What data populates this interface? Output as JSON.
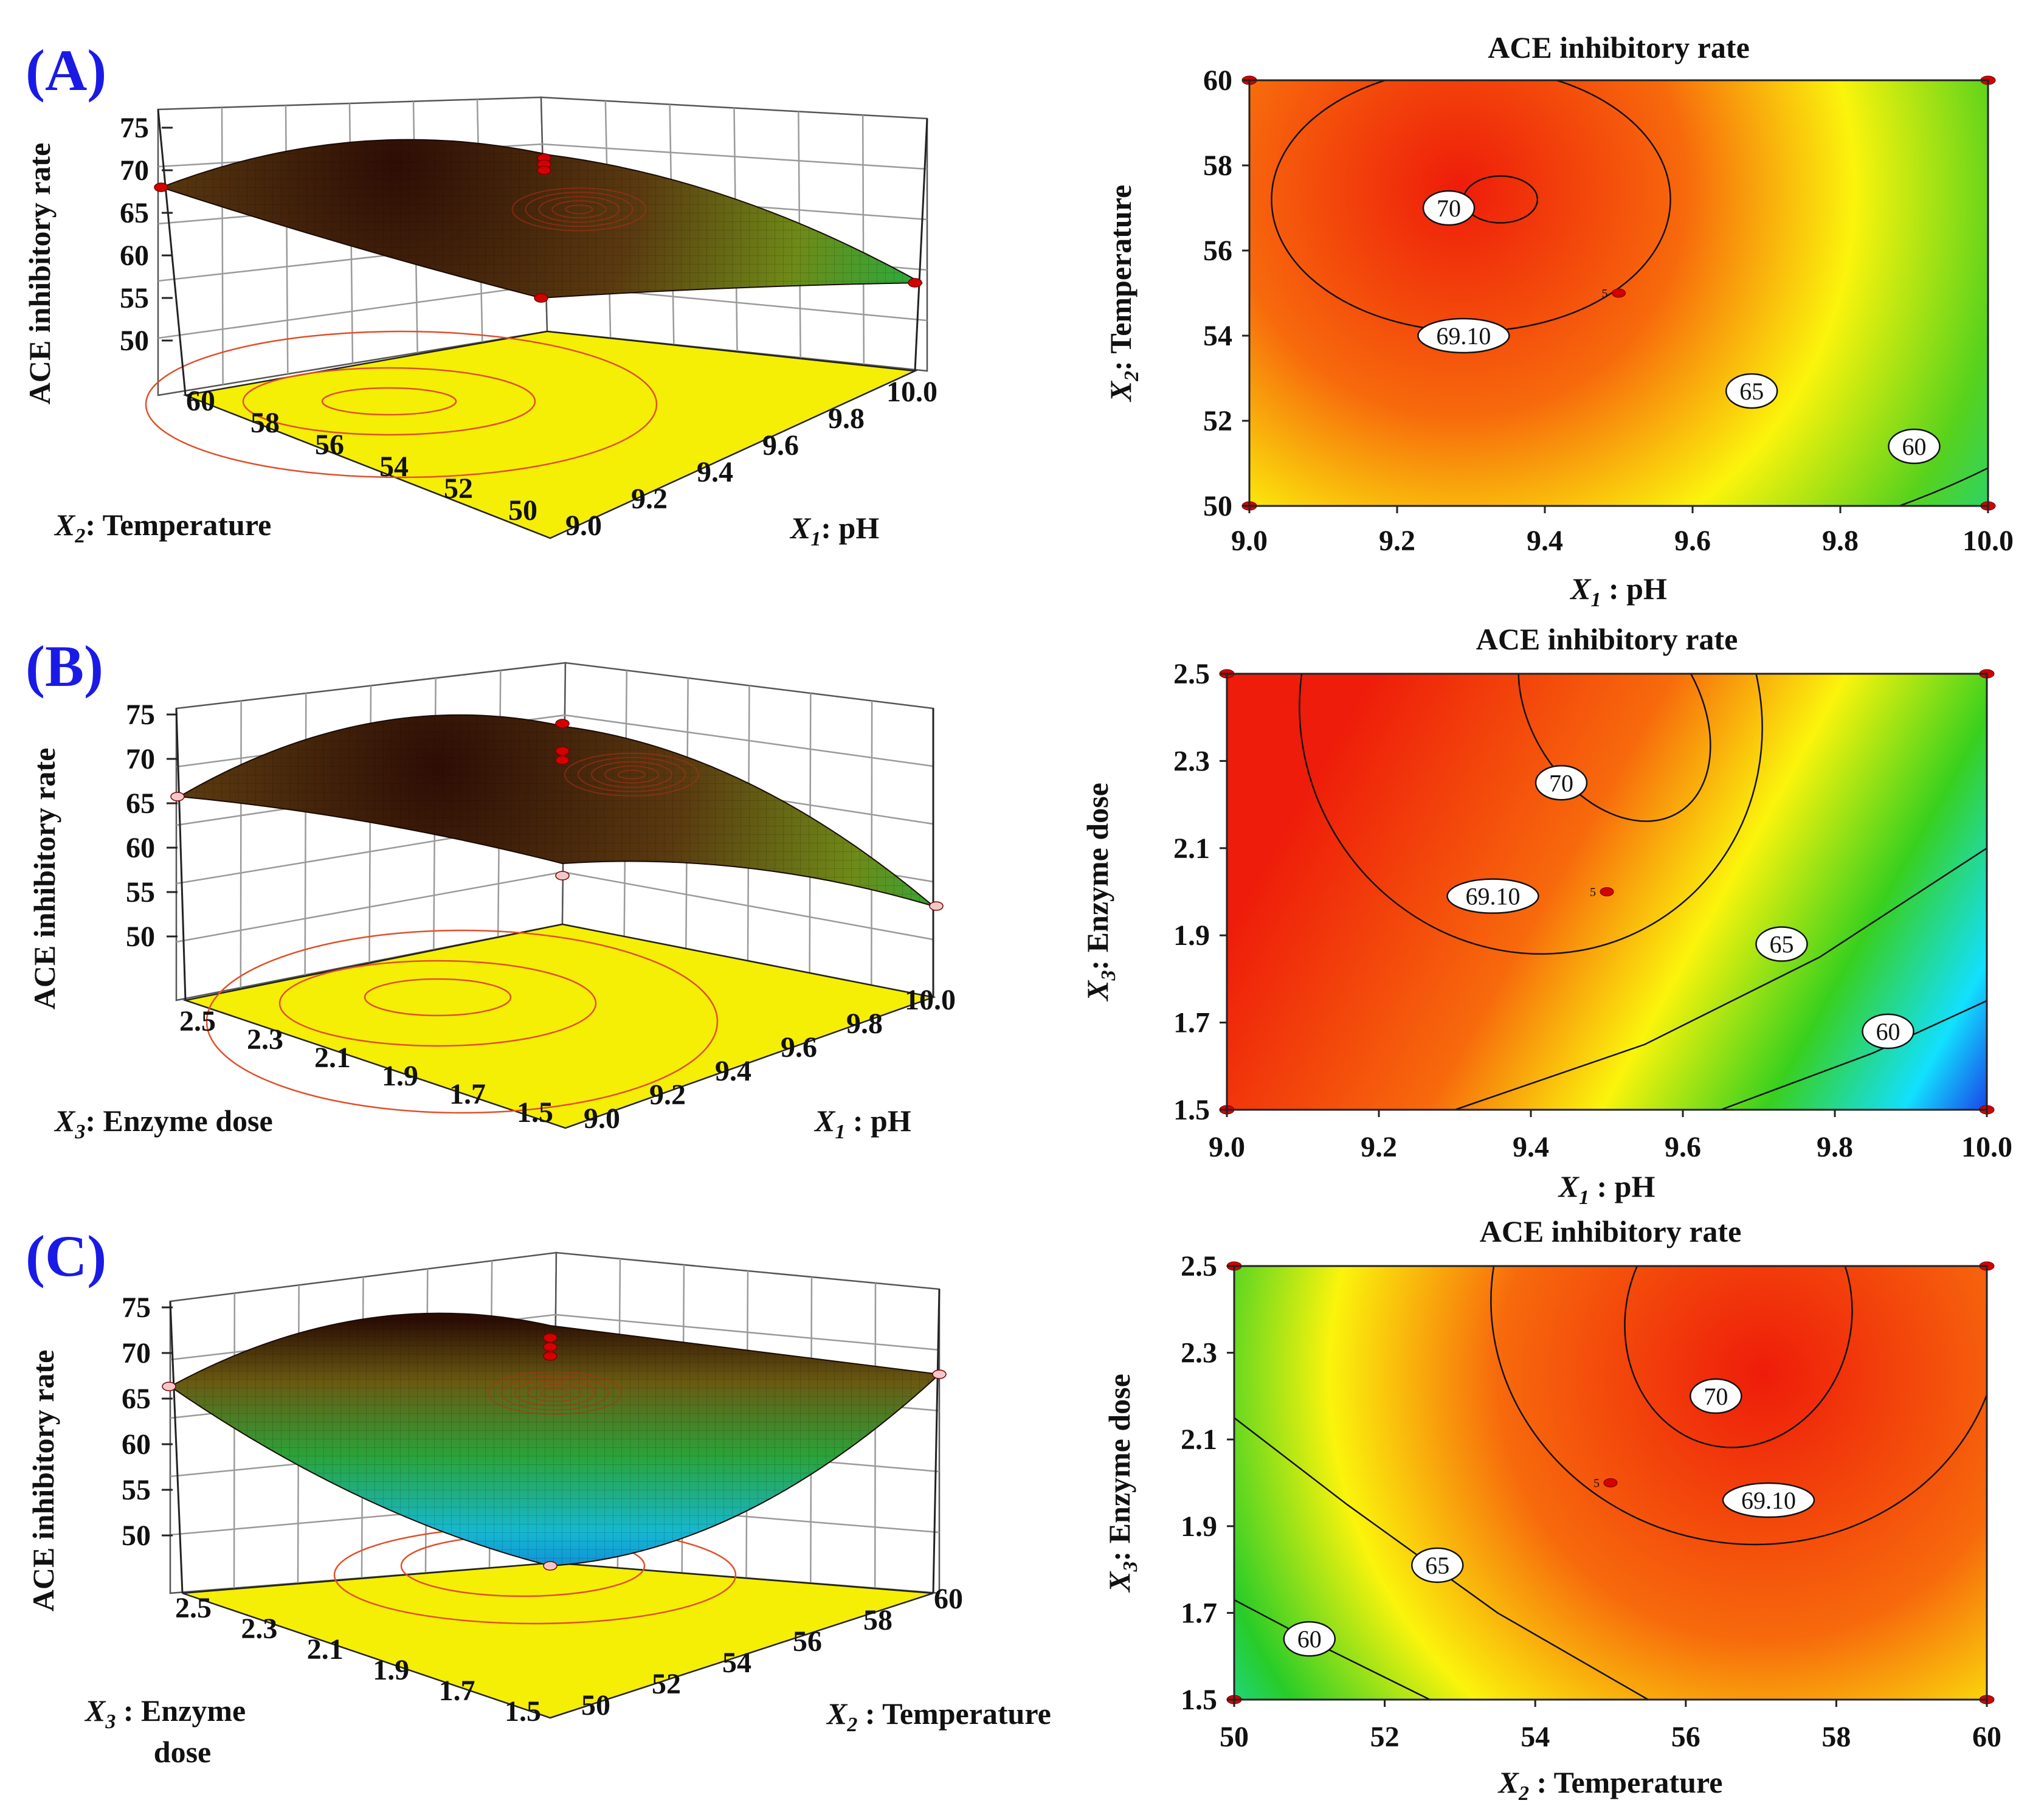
{
  "chart_data": [
    {
      "panel": "(A)",
      "type": "surface3d",
      "zlabel": "ACE inhibitory rate",
      "zticks": [
        "50",
        "55",
        "60",
        "65",
        "70",
        "75"
      ],
      "xlabel": {
        "var": "X",
        "sub": "2",
        "rest": ": Temperature"
      },
      "xticks": [
        "60",
        "58",
        "56",
        "54",
        "52",
        "50"
      ],
      "ylabel": {
        "var": "X",
        "sub": "1",
        "rest": ": pH"
      },
      "yticks": [
        "9.0",
        "9.2",
        "9.4",
        "9.6",
        "9.8",
        "10.0"
      ],
      "colors": {
        "floor": "#f5ee05",
        "top": "#3a1206",
        "mid": "#7a8a12",
        "low": "#1fae3c",
        "contour": "#e04f2a"
      }
    },
    {
      "panel": "(A)",
      "type": "contour",
      "title": "ACE inhibitory rate",
      "x": {
        "ticks": [
          "9.0",
          "9.2",
          "9.4",
          "9.6",
          "9.8",
          "10.0"
        ],
        "range": [
          9.0,
          10.0
        ],
        "label": {
          "var": "X",
          "sub": "1",
          "rest": " : pH"
        }
      },
      "y": {
        "ticks": [
          "50",
          "52",
          "54",
          "56",
          "58",
          "60"
        ],
        "range": [
          50,
          60
        ],
        "label": {
          "var": "X",
          "sub": "2",
          "rest": ": Temperature"
        }
      },
      "peak": {
        "x": 9.32,
        "y": 57.2,
        "value": 70.3
      },
      "levels": [
        "70",
        "69.10",
        "65",
        "60"
      ],
      "design_point_label": "5"
    },
    {
      "panel": "(B)",
      "type": "surface3d",
      "zlabel": "ACE inhibitory rate",
      "zticks": [
        "50",
        "55",
        "60",
        "65",
        "70",
        "75"
      ],
      "xlabel": {
        "var": "X",
        "sub": "3",
        "rest": ": Enzyme dose"
      },
      "xticks": [
        "2.5",
        "2.3",
        "2.1",
        "1.9",
        "1.7",
        "1.5"
      ],
      "ylabel": {
        "var": "X",
        "sub": "1",
        "rest": " : pH"
      },
      "yticks": [
        "9.0",
        "9.2",
        "9.4",
        "9.6",
        "9.8",
        "10.0"
      ],
      "colors": {
        "floor": "#f5ee05",
        "top": "#3a1206",
        "mid": "#7a8a12",
        "low": "#1fae3c",
        "contour": "#e04f2a"
      }
    },
    {
      "panel": "(B)",
      "type": "contour",
      "title": "ACE inhibitory rate",
      "x": {
        "ticks": [
          "9.0",
          "9.2",
          "9.4",
          "9.6",
          "9.8",
          "10.0"
        ],
        "range": [
          9.0,
          10.0
        ],
        "label": {
          "var": "X",
          "sub": "1",
          "rest": " : pH"
        }
      },
      "y": {
        "ticks": [
          "1.5",
          "1.7",
          "1.9",
          "2.1",
          "2.3",
          "2.5"
        ],
        "range": [
          1.5,
          2.5
        ],
        "label": {
          "var": "X",
          "sub": "3",
          "rest": ": Enzyme dose"
        }
      },
      "peak": {
        "x": 9.45,
        "y": 2.38,
        "value": 70.3
      },
      "levels": [
        "70",
        "69.10",
        "65",
        "60"
      ],
      "design_point_label": "5"
    },
    {
      "panel": "(C)",
      "type": "surface3d",
      "zlabel": "ACE inhibitory rate",
      "zticks": [
        "50",
        "55",
        "60",
        "65",
        "70",
        "75"
      ],
      "xlabel": {
        "var": "X",
        "sub": "3",
        "rest": " : Enzyme",
        "line2": "dose"
      },
      "xticks": [
        "2.5",
        "2.3",
        "2.1",
        "1.9",
        "1.7",
        "1.5"
      ],
      "ylabel": {
        "var": "X",
        "sub": "2",
        "rest": " : Temperature"
      },
      "yticks": [
        "50",
        "52",
        "54",
        "56",
        "58",
        "60"
      ],
      "colors": {
        "floor": "#f5ee05",
        "top": "#3a1206",
        "mid": "#7a8a12",
        "low": "#18b8d8",
        "contour": "#e04f2a"
      }
    },
    {
      "panel": "(C)",
      "type": "contour",
      "title": "ACE inhibitory rate",
      "x": {
        "ticks": [
          "50",
          "52",
          "54",
          "56",
          "58",
          "60"
        ],
        "range": [
          50,
          60
        ],
        "label": {
          "var": "X",
          "sub": "2",
          "rest": " : Temperature"
        }
      },
      "y": {
        "ticks": [
          "1.5",
          "1.7",
          "1.9",
          "2.1",
          "2.3",
          "2.5"
        ],
        "range": [
          1.5,
          2.5
        ],
        "label": {
          "var": "X",
          "sub": "3",
          "rest": ": Enzyme dose"
        }
      },
      "peak": {
        "x": 56.6,
        "y": 2.32,
        "value": 70.3
      },
      "levels": [
        "70",
        "69.10",
        "65",
        "60"
      ],
      "design_point_label": "5"
    }
  ]
}
